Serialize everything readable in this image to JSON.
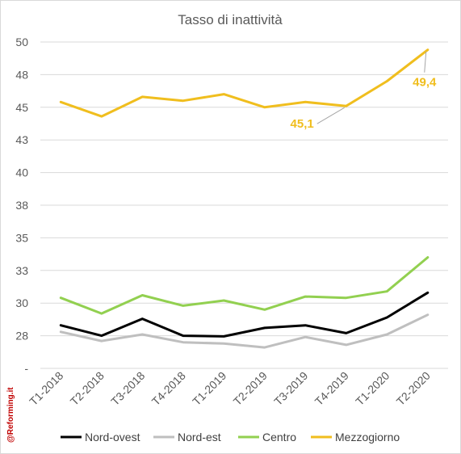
{
  "chart_data": {
    "type": "line",
    "title": "Tasso di inattività",
    "xlabel": "",
    "ylabel": "",
    "categories": [
      "T1-2018",
      "T2-2018",
      "T3-2018",
      "T4-2018",
      "T1-2019",
      "T2-2019",
      "T3-2019",
      "T4-2019",
      "T1-2020",
      "T2-2020"
    ],
    "ylim": [
      25,
      50
    ],
    "y_tick_values": [
      25,
      27.5,
      30,
      32.5,
      35,
      37.5,
      40,
      42.5,
      45,
      47.5,
      50
    ],
    "y_tick_labels": [
      "-",
      "28",
      "30",
      "33",
      "35",
      "38",
      "40",
      "43",
      "45",
      "48",
      "50"
    ],
    "grid": true,
    "legend_position": "bottom",
    "series": [
      {
        "name": "Nord-ovest",
        "color": "#000000",
        "values": [
          28.3,
          27.5,
          28.8,
          27.5,
          27.45,
          28.1,
          28.3,
          27.7,
          28.9,
          30.8
        ]
      },
      {
        "name": "Nord-est",
        "color": "#bfbfbf",
        "values": [
          27.8,
          27.1,
          27.6,
          27.0,
          26.9,
          26.6,
          27.4,
          26.8,
          27.6,
          29.1
        ]
      },
      {
        "name": "Centro",
        "color": "#92d050",
        "values": [
          30.4,
          29.2,
          30.6,
          29.8,
          30.2,
          29.5,
          30.5,
          30.4,
          30.9,
          33.5
        ]
      },
      {
        "name": "Mezzogiorno",
        "color": "#f0be1e",
        "values": [
          45.4,
          44.3,
          45.8,
          45.5,
          46.0,
          45.0,
          45.4,
          45.1,
          47.0,
          49.4
        ]
      }
    ],
    "annotations": [
      {
        "series": "Mezzogiorno",
        "category": "T4-2019",
        "text": "45,1"
      },
      {
        "series": "Mezzogiorno",
        "category": "T2-2020",
        "text": "49,4"
      }
    ]
  },
  "watermark": "@Reforming.it"
}
